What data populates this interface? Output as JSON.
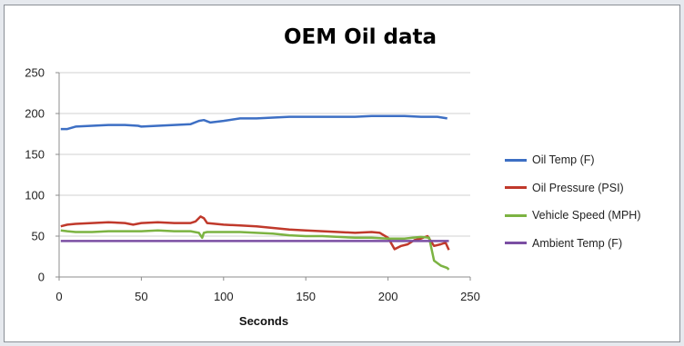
{
  "chart_data": {
    "type": "line",
    "title": "OEM Oil data",
    "xlabel": "Seconds",
    "ylabel": "",
    "xlim": [
      0,
      250
    ],
    "ylim": [
      0,
      250
    ],
    "xticks": [
      0,
      50,
      100,
      150,
      200,
      250
    ],
    "yticks": [
      0,
      50,
      100,
      150,
      200,
      250
    ],
    "grid": "horizontal",
    "legend_position": "right",
    "series": [
      {
        "name": "Oil Temp (F)",
        "color": "#3d6fc4",
        "x": [
          1,
          5,
          10,
          20,
          30,
          40,
          48,
          50,
          60,
          70,
          80,
          85,
          88,
          92,
          100,
          110,
          120,
          130,
          140,
          150,
          160,
          170,
          180,
          190,
          200,
          210,
          220,
          230,
          236
        ],
        "y": [
          181,
          181,
          184,
          185,
          186,
          186,
          185,
          184,
          185,
          186,
          187,
          191,
          192,
          189,
          191,
          194,
          194,
          195,
          196,
          196,
          196,
          196,
          196,
          197,
          197,
          197,
          196,
          196,
          194
        ]
      },
      {
        "name": "Oil Pressure (PSI)",
        "color": "#c0392b",
        "x": [
          1,
          5,
          10,
          20,
          30,
          40,
          45,
          50,
          60,
          70,
          80,
          83,
          86,
          88,
          90,
          95,
          100,
          110,
          120,
          130,
          140,
          150,
          160,
          170,
          180,
          190,
          195,
          200,
          204,
          208,
          212,
          216,
          220,
          224,
          228,
          232,
          235,
          237
        ],
        "y": [
          62,
          64,
          65,
          66,
          67,
          66,
          64,
          66,
          67,
          66,
          66,
          68,
          74,
          72,
          66,
          65,
          64,
          63,
          62,
          60,
          58,
          57,
          56,
          55,
          54,
          55,
          54,
          48,
          34,
          38,
          40,
          45,
          47,
          50,
          38,
          40,
          42,
          33
        ]
      },
      {
        "name": "Vehicle Speed (MPH)",
        "color": "#7cb342",
        "x": [
          1,
          5,
          10,
          20,
          30,
          40,
          50,
          60,
          70,
          80,
          85,
          87,
          88,
          90,
          100,
          110,
          120,
          130,
          140,
          150,
          160,
          170,
          180,
          190,
          200,
          210,
          215,
          220,
          225,
          228,
          232,
          236,
          237
        ],
        "y": [
          57,
          56,
          55,
          55,
          56,
          56,
          56,
          57,
          56,
          56,
          54,
          48,
          54,
          55,
          55,
          55,
          54,
          53,
          51,
          50,
          50,
          49,
          48,
          48,
          47,
          47,
          48,
          49,
          48,
          20,
          14,
          11,
          9
        ]
      },
      {
        "name": "Ambient Temp (F)",
        "color": "#7b4fa3",
        "x": [
          1,
          237
        ],
        "y": [
          44,
          44
        ]
      }
    ]
  }
}
